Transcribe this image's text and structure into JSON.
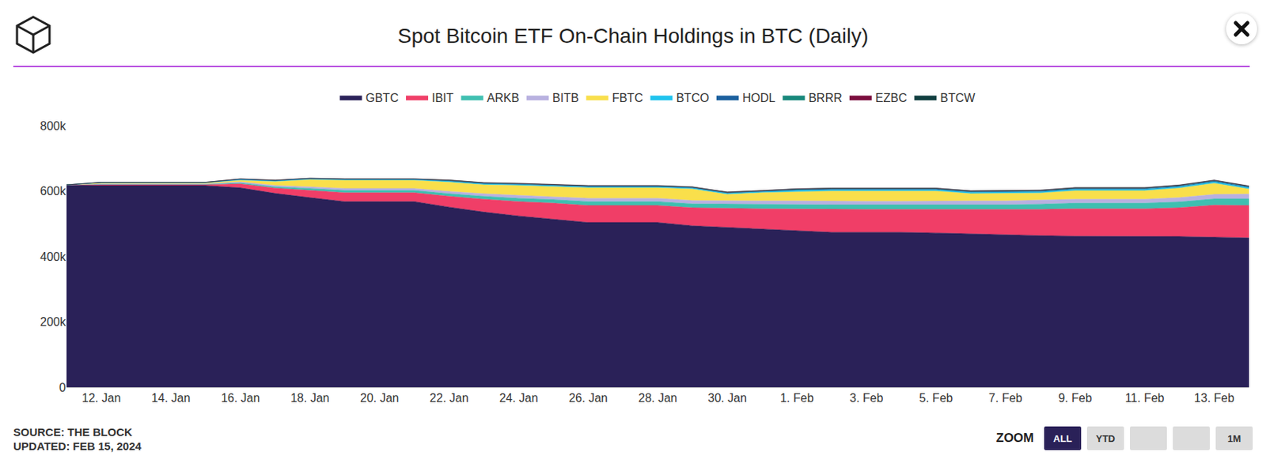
{
  "chart_data": {
    "type": "area",
    "stacked": true,
    "title": "Spot Bitcoin ETF On-Chain Holdings in BTC (Daily)",
    "categories": [
      null,
      "12. Jan",
      null,
      "14. Jan",
      null,
      "16. Jan",
      null,
      "18. Jan",
      null,
      "20. Jan",
      null,
      "22. Jan",
      null,
      "24. Jan",
      null,
      "26. Jan",
      null,
      "28. Jan",
      null,
      "30. Jan",
      null,
      "1. Feb",
      null,
      "3. Feb",
      null,
      "5. Feb",
      null,
      "7. Feb",
      null,
      "9. Feb",
      null,
      "11. Feb",
      null,
      "13. Feb",
      null
    ],
    "series": [
      {
        "name": "GBTC",
        "color": "#2a2158",
        "values": [
          619000,
          617000,
          617000,
          617000,
          617000,
          610000,
          593000,
          580000,
          568000,
          568000,
          568000,
          551000,
          536000,
          524000,
          514000,
          504000,
          504000,
          504000,
          494000,
          489000,
          484000,
          479000,
          474000,
          474000,
          474000,
          472000,
          469000,
          467000,
          464000,
          462000,
          462000,
          462000,
          461000,
          459000,
          457000
        ]
      },
      {
        "name": "IBIT",
        "color": "#f03e67",
        "values": [
          0,
          3000,
          3000,
          3000,
          3000,
          12000,
          16000,
          22000,
          27000,
          27000,
          27000,
          33000,
          39000,
          44000,
          49000,
          52000,
          52000,
          52000,
          55000,
          58000,
          62000,
          66000,
          70000,
          70000,
          70000,
          72000,
          74000,
          76000,
          80000,
          84000,
          84000,
          84000,
          88000,
          98000,
          99000
        ]
      },
      {
        "name": "ARKB",
        "color": "#3fbfb0",
        "values": [
          0,
          1000,
          1000,
          1000,
          1000,
          3000,
          4000,
          6000,
          7000,
          7000,
          7000,
          8000,
          9000,
          10000,
          11000,
          12000,
          12000,
          12000,
          12000,
          13000,
          13000,
          14000,
          14000,
          14000,
          14000,
          15000,
          15000,
          15000,
          16000,
          17000,
          17000,
          17000,
          18000,
          19000,
          20000
        ]
      },
      {
        "name": "BITB",
        "color": "#b8b0e0",
        "values": [
          0,
          1000,
          1000,
          1000,
          1000,
          3000,
          4000,
          5000,
          6000,
          6000,
          6000,
          7000,
          8000,
          9000,
          9000,
          10000,
          10000,
          10000,
          10000,
          10000,
          11000,
          11000,
          11000,
          11000,
          11000,
          11000,
          12000,
          12000,
          12000,
          12000,
          12000,
          12000,
          13000,
          14000,
          15000
        ]
      },
      {
        "name": "FBTC",
        "color": "#f9df4b",
        "values": [
          0,
          3000,
          3000,
          3000,
          3000,
          5000,
          12000,
          22000,
          25000,
          25000,
          25000,
          28000,
          27000,
          30000,
          30000,
          32000,
          32000,
          32000,
          35000,
          20000,
          25000,
          28000,
          31000,
          31000,
          31000,
          30000,
          22000,
          23000,
          22000,
          26000,
          26000,
          26000,
          29000,
          34000,
          15000
        ]
      },
      {
        "name": "BTCO",
        "color": "#1ec3ee",
        "values": [
          0,
          1000,
          1000,
          1000,
          1000,
          2000,
          2000,
          2000,
          2000,
          2000,
          2000,
          3000,
          3000,
          3000,
          3000,
          3000,
          3000,
          3000,
          3000,
          3000,
          3000,
          4000,
          4000,
          4000,
          4000,
          4000,
          4000,
          4000,
          4000,
          4000,
          4000,
          4000,
          4000,
          4000,
          4000
        ]
      },
      {
        "name": "HODL",
        "color": "#1a5f9e",
        "values": [
          0,
          500,
          500,
          500,
          500,
          1000,
          1000,
          1000,
          1000,
          1000,
          1000,
          1500,
          1500,
          1500,
          1500,
          1500,
          1500,
          1500,
          1500,
          1500,
          1500,
          2000,
          2000,
          2000,
          2000,
          2000,
          2000,
          2000,
          2000,
          2500,
          2500,
          2500,
          2500,
          2500,
          2500
        ]
      },
      {
        "name": "BRRR",
        "color": "#16877a",
        "values": [
          0,
          300,
          300,
          300,
          300,
          800,
          800,
          800,
          800,
          800,
          800,
          1200,
          1200,
          1200,
          1200,
          1200,
          1200,
          1200,
          1200,
          1200,
          1200,
          1500,
          1500,
          1500,
          1500,
          1500,
          1500,
          1500,
          1500,
          1500,
          1500,
          1500,
          1500,
          1500,
          1500
        ]
      },
      {
        "name": "EZBC",
        "color": "#7a0c3c",
        "values": [
          0,
          200,
          200,
          200,
          200,
          500,
          500,
          500,
          500,
          500,
          500,
          900,
          900,
          900,
          900,
          900,
          900,
          900,
          900,
          900,
          900,
          1200,
          1200,
          1200,
          1200,
          1200,
          1200,
          1200,
          1200,
          1200,
          1200,
          1200,
          1200,
          1200,
          1200
        ]
      },
      {
        "name": "BTCW",
        "color": "#0f3d3e",
        "values": [
          0,
          100,
          100,
          100,
          100,
          200,
          200,
          200,
          200,
          200,
          200,
          300,
          300,
          300,
          300,
          300,
          300,
          300,
          300,
          300,
          300,
          400,
          400,
          400,
          400,
          400,
          400,
          400,
          400,
          400,
          400,
          400,
          400,
          400,
          400
        ]
      }
    ],
    "ylim": [
      0,
      800000
    ],
    "yticks": [
      0,
      {
        "value": 200000,
        "label": "200k"
      },
      {
        "value": 400000,
        "label": "400k"
      },
      {
        "value": 600000,
        "label": "600k"
      },
      {
        "value": 800000,
        "label": "800k"
      }
    ],
    "grid": true,
    "legend": "top",
    "annotations": [
      "SOURCE: THE BLOCK",
      "UPDATED: FEB 15, 2024"
    ],
    "zoom": {
      "label": "ZOOM",
      "buttons": [
        "ALL",
        "YTD",
        "1M"
      ]
    }
  }
}
